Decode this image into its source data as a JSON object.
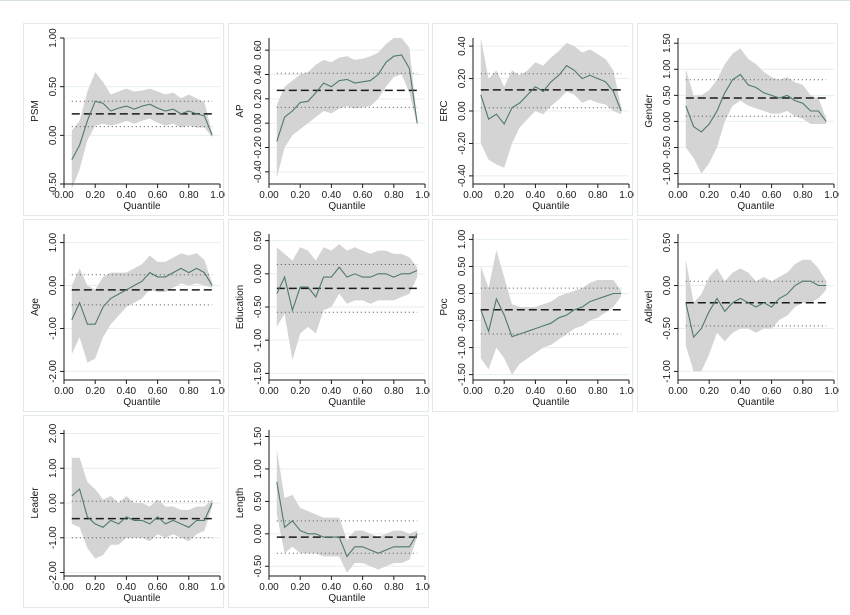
{
  "colors": {
    "band": "#d4d4d4",
    "line": "#4f7a6b",
    "ols": "#1a1a1a",
    "dots": "#555555",
    "axis": "#1a1a1a",
    "grid": "#e6eef1",
    "panel_border": "#e3e8ea"
  },
  "chart_data": [
    {
      "type": "line",
      "ylabel": "PSM",
      "xlabel": "Quantile",
      "xlim": [
        0,
        1
      ],
      "ylim": [
        -0.5,
        1.0
      ],
      "xticks": [
        "0.00",
        "0.20",
        "0.40",
        "0.60",
        "0.80",
        "1.00"
      ],
      "yticks": [
        [
          "-0.50",
          -0.5
        ],
        [
          "0.00",
          0
        ],
        [
          "0.50",
          0.5
        ],
        [
          "1.00",
          1.0
        ]
      ],
      "x": [
        0.05,
        0.1,
        0.15,
        0.2,
        0.25,
        0.3,
        0.35,
        0.4,
        0.45,
        0.5,
        0.55,
        0.6,
        0.65,
        0.7,
        0.75,
        0.8,
        0.85,
        0.9,
        0.95
      ],
      "series": [
        {
          "values": [
            -0.25,
            -0.1,
            0.15,
            0.35,
            0.33,
            0.25,
            0.28,
            0.3,
            0.27,
            0.3,
            0.32,
            0.28,
            0.25,
            0.27,
            0.22,
            0.25,
            0.22,
            0.2,
            0.0
          ]
        }
      ],
      "ci_lower": [
        -0.55,
        -0.35,
        -0.05,
        0.1,
        0.12,
        0.1,
        0.12,
        0.15,
        0.12,
        0.15,
        0.17,
        0.13,
        0.1,
        0.12,
        0.08,
        0.1,
        0.08,
        0.08,
        -0.02
      ],
      "ci_upper": [
        0.05,
        0.15,
        0.45,
        0.65,
        0.55,
        0.42,
        0.45,
        0.48,
        0.45,
        0.46,
        0.48,
        0.45,
        0.42,
        0.44,
        0.38,
        0.42,
        0.38,
        0.34,
        0.02
      ],
      "ols": 0.22,
      "ols_ci": [
        0.09,
        0.35
      ]
    },
    {
      "type": "line",
      "ylabel": "AP",
      "xlabel": "Quantile",
      "xlim": [
        0,
        1
      ],
      "ylim": [
        -0.5,
        0.7
      ],
      "xticks": [
        "0.00",
        "0.20",
        "0.40",
        "0.60",
        "0.80",
        "1.00"
      ],
      "yticks": [
        [
          "-0.40",
          -0.4
        ],
        [
          "-0.20",
          -0.2
        ],
        [
          "0.00",
          0
        ],
        [
          "0.20",
          0.2
        ],
        [
          "0.40",
          0.4
        ],
        [
          "0.60",
          0.6
        ]
      ],
      "x": [
        0.05,
        0.1,
        0.15,
        0.2,
        0.25,
        0.3,
        0.35,
        0.4,
        0.45,
        0.5,
        0.55,
        0.6,
        0.65,
        0.7,
        0.75,
        0.8,
        0.85,
        0.9,
        0.95
      ],
      "series": [
        {
          "values": [
            -0.15,
            0.05,
            0.1,
            0.17,
            0.18,
            0.25,
            0.33,
            0.3,
            0.35,
            0.36,
            0.33,
            0.34,
            0.35,
            0.4,
            0.5,
            0.55,
            0.56,
            0.45,
            0.0
          ]
        }
      ],
      "ci_lower": [
        -0.45,
        -0.2,
        -0.1,
        -0.05,
        0.0,
        0.05,
        0.1,
        0.08,
        0.12,
        0.14,
        0.12,
        0.13,
        0.14,
        0.2,
        0.3,
        0.38,
        0.4,
        0.25,
        -0.02
      ],
      "ci_upper": [
        0.15,
        0.3,
        0.35,
        0.4,
        0.42,
        0.48,
        0.52,
        0.5,
        0.54,
        0.55,
        0.52,
        0.53,
        0.55,
        0.58,
        0.65,
        0.7,
        0.7,
        0.62,
        0.02
      ],
      "ols": 0.27,
      "ols_ci": [
        0.13,
        0.41
      ]
    },
    {
      "type": "line",
      "ylabel": "ERC",
      "xlabel": "Quantile",
      "xlim": [
        0,
        1
      ],
      "ylim": [
        -0.45,
        0.45
      ],
      "xticks": [
        "0.00",
        "0.20",
        "0.40",
        "0.60",
        "0.80",
        "1.00"
      ],
      "yticks": [
        [
          "-0.40",
          -0.4
        ],
        [
          "-0.20",
          -0.2
        ],
        [
          "0.00",
          0
        ],
        [
          "0.20",
          0.2
        ],
        [
          "0.40",
          0.4
        ]
      ],
      "x": [
        0.05,
        0.1,
        0.15,
        0.2,
        0.25,
        0.3,
        0.35,
        0.4,
        0.45,
        0.5,
        0.55,
        0.6,
        0.65,
        0.7,
        0.75,
        0.8,
        0.85,
        0.9,
        0.95
      ],
      "series": [
        {
          "values": [
            0.1,
            -0.05,
            -0.02,
            -0.08,
            0.02,
            0.05,
            0.1,
            0.15,
            0.12,
            0.18,
            0.22,
            0.28,
            0.25,
            0.2,
            0.22,
            0.2,
            0.18,
            0.12,
            0.0
          ]
        }
      ],
      "ci_lower": [
        -0.2,
        -0.3,
        -0.33,
        -0.35,
        -0.2,
        -0.1,
        -0.05,
        0.0,
        -0.02,
        0.03,
        0.07,
        0.12,
        0.1,
        0.05,
        0.07,
        0.05,
        0.04,
        0.0,
        -0.02
      ],
      "ci_upper": [
        0.45,
        0.2,
        0.25,
        0.15,
        0.25,
        0.22,
        0.25,
        0.3,
        0.28,
        0.33,
        0.37,
        0.42,
        0.4,
        0.36,
        0.38,
        0.35,
        0.32,
        0.25,
        0.02
      ],
      "ols": 0.13,
      "ols_ci": [
        0.02,
        0.23
      ]
    },
    {
      "type": "line",
      "ylabel": "Gender",
      "xlabel": "Quantile",
      "xlim": [
        0,
        1
      ],
      "ylim": [
        -1.2,
        1.6
      ],
      "xticks": [
        "0.00",
        "0.20",
        "0.40",
        "0.60",
        "0.80",
        "1.00"
      ],
      "yticks": [
        [
          "-1.00",
          -1.0
        ],
        [
          "-0.50",
          -0.5
        ],
        [
          "0.00",
          0
        ],
        [
          "0.50",
          0.5
        ],
        [
          "1.00",
          1.0
        ],
        [
          "1.50",
          1.5
        ]
      ],
      "x": [
        0.05,
        0.1,
        0.15,
        0.2,
        0.25,
        0.3,
        0.35,
        0.4,
        0.45,
        0.5,
        0.55,
        0.6,
        0.65,
        0.7,
        0.75,
        0.8,
        0.85,
        0.9,
        0.95
      ],
      "series": [
        {
          "values": [
            0.3,
            -0.1,
            -0.2,
            -0.05,
            0.2,
            0.55,
            0.8,
            0.9,
            0.7,
            0.65,
            0.55,
            0.5,
            0.45,
            0.5,
            0.4,
            0.35,
            0.2,
            0.2,
            0.0
          ]
        }
      ],
      "ci_lower": [
        -0.5,
        -0.7,
        -1.0,
        -0.8,
        -0.5,
        0.0,
        0.3,
        0.4,
        0.3,
        0.25,
        0.2,
        0.15,
        0.15,
        0.2,
        0.1,
        0.05,
        -0.05,
        -0.05,
        -0.05
      ],
      "ci_upper": [
        1.0,
        0.5,
        0.5,
        0.6,
        0.8,
        1.1,
        1.3,
        1.4,
        1.2,
        1.1,
        0.95,
        0.85,
        0.8,
        0.85,
        0.75,
        0.7,
        0.5,
        0.45,
        0.05
      ],
      "ols": 0.45,
      "ols_ci": [
        0.1,
        0.8
      ]
    },
    {
      "type": "line",
      "ylabel": "Age",
      "xlabel": "Quantile",
      "xlim": [
        0,
        1
      ],
      "ylim": [
        -2.2,
        1.2
      ],
      "xticks": [
        "0.00",
        "0.20",
        "0.40",
        "0.60",
        "0.80",
        "1.00"
      ],
      "yticks": [
        [
          "-2.00",
          -2.0
        ],
        [
          "-1.00",
          -1.0
        ],
        [
          "0.00",
          0
        ],
        [
          "1.00",
          1.0
        ]
      ],
      "x": [
        0.05,
        0.1,
        0.15,
        0.2,
        0.25,
        0.3,
        0.35,
        0.4,
        0.45,
        0.5,
        0.55,
        0.6,
        0.65,
        0.7,
        0.75,
        0.8,
        0.85,
        0.9,
        0.95
      ],
      "series": [
        {
          "values": [
            -0.8,
            -0.4,
            -0.9,
            -0.9,
            -0.5,
            -0.3,
            -0.2,
            -0.1,
            0.0,
            0.1,
            0.3,
            0.2,
            0.2,
            0.3,
            0.4,
            0.3,
            0.4,
            0.3,
            0.0
          ]
        }
      ],
      "ci_lower": [
        -1.6,
        -1.2,
        -1.8,
        -1.7,
        -1.2,
        -0.9,
        -0.7,
        -0.5,
        -0.4,
        -0.3,
        -0.1,
        -0.15,
        -0.15,
        -0.05,
        0.05,
        0.0,
        0.05,
        0.0,
        -0.05
      ],
      "ci_upper": [
        0.0,
        0.4,
        0.0,
        -0.1,
        0.2,
        0.3,
        0.3,
        0.3,
        0.4,
        0.5,
        0.7,
        0.55,
        0.55,
        0.65,
        0.75,
        0.7,
        0.75,
        0.6,
        0.05
      ],
      "ols": -0.1,
      "ols_ci": [
        -0.45,
        0.25
      ]
    },
    {
      "type": "line",
      "ylabel": "Education",
      "xlabel": "Quantile",
      "xlim": [
        0,
        1
      ],
      "ylim": [
        -1.6,
        0.6
      ],
      "xticks": [
        "0.00",
        "0.20",
        "0.40",
        "0.60",
        "0.80",
        "1.00"
      ],
      "yticks": [
        [
          "-1.50",
          -1.5
        ],
        [
          "-1.00",
          -1.0
        ],
        [
          "-0.50",
          -0.5
        ],
        [
          "0.00",
          0
        ],
        [
          "0.50",
          0.5
        ]
      ],
      "x": [
        0.05,
        0.1,
        0.15,
        0.2,
        0.25,
        0.3,
        0.35,
        0.4,
        0.45,
        0.5,
        0.55,
        0.6,
        0.65,
        0.7,
        0.75,
        0.8,
        0.85,
        0.9,
        0.95
      ],
      "series": [
        {
          "values": [
            -0.3,
            -0.05,
            -0.55,
            -0.2,
            -0.2,
            -0.35,
            -0.05,
            -0.05,
            0.1,
            -0.05,
            0.0,
            -0.05,
            -0.05,
            0.0,
            0.0,
            -0.05,
            0.0,
            0.0,
            0.05
          ]
        }
      ],
      "ci_lower": [
        -0.8,
        -0.6,
        -1.3,
        -0.9,
        -0.8,
        -0.9,
        -0.55,
        -0.5,
        -0.3,
        -0.45,
        -0.4,
        -0.4,
        -0.45,
        -0.4,
        -0.4,
        -0.4,
        -0.35,
        -0.3,
        -0.05
      ],
      "ci_upper": [
        0.4,
        0.3,
        0.2,
        0.4,
        0.35,
        0.2,
        0.4,
        0.35,
        0.45,
        0.35,
        0.4,
        0.35,
        0.3,
        0.35,
        0.35,
        0.3,
        0.3,
        0.25,
        0.1
      ],
      "ols": -0.22,
      "ols_ci": [
        -0.58,
        0.14
      ]
    },
    {
      "type": "line",
      "ylabel": "Poc",
      "xlabel": "Quantile",
      "xlim": [
        0,
        1
      ],
      "ylim": [
        -1.6,
        1.1
      ],
      "xticks": [
        "0.00",
        "0.20",
        "0.40",
        "0.60",
        "0.80",
        "1.00"
      ],
      "yticks": [
        [
          "-1.50",
          -1.5
        ],
        [
          "-1.00",
          -1.0
        ],
        [
          "-0.50",
          -0.5
        ],
        [
          "0.00",
          0
        ],
        [
          "0.50",
          0.5
        ],
        [
          "1.00",
          1.0
        ]
      ],
      "x": [
        0.05,
        0.1,
        0.15,
        0.2,
        0.25,
        0.3,
        0.35,
        0.4,
        0.45,
        0.5,
        0.55,
        0.6,
        0.65,
        0.7,
        0.75,
        0.8,
        0.85,
        0.9,
        0.95
      ],
      "series": [
        {
          "values": [
            -0.3,
            -0.7,
            -0.1,
            -0.4,
            -0.8,
            -0.75,
            -0.7,
            -0.65,
            -0.6,
            -0.55,
            -0.45,
            -0.4,
            -0.3,
            -0.25,
            -0.15,
            -0.1,
            -0.05,
            0.0,
            0.0
          ]
        }
      ],
      "ci_lower": [
        -1.2,
        -1.4,
        -1.0,
        -1.2,
        -1.5,
        -1.3,
        -1.2,
        -1.1,
        -1.0,
        -0.95,
        -0.85,
        -0.75,
        -0.65,
        -0.6,
        -0.5,
        -0.45,
        -0.35,
        -0.25,
        -0.05
      ],
      "ci_upper": [
        0.5,
        0.1,
        0.8,
        0.3,
        -0.2,
        -0.25,
        -0.25,
        -0.25,
        -0.2,
        -0.15,
        -0.05,
        0.0,
        0.05,
        0.1,
        0.2,
        0.25,
        0.25,
        0.25,
        0.05
      ],
      "ols": -0.3,
      "ols_ci": [
        -0.75,
        0.1
      ]
    },
    {
      "type": "line",
      "ylabel": "Adlevel",
      "xlabel": "Quantile",
      "xlim": [
        0,
        1
      ],
      "ylim": [
        -1.1,
        0.6
      ],
      "xticks": [
        "0.00",
        "0.20",
        "0.40",
        "0.60",
        "0.80",
        "1.00"
      ],
      "yticks": [
        [
          "-1.00",
          -1.0
        ],
        [
          "-0.50",
          -0.5
        ],
        [
          "0.00",
          0
        ],
        [
          "0.50",
          0.5
        ]
      ],
      "x": [
        0.05,
        0.1,
        0.15,
        0.2,
        0.25,
        0.3,
        0.35,
        0.4,
        0.45,
        0.5,
        0.55,
        0.6,
        0.65,
        0.7,
        0.75,
        0.8,
        0.85,
        0.9,
        0.95
      ],
      "series": [
        {
          "values": [
            -0.2,
            -0.6,
            -0.5,
            -0.3,
            -0.15,
            -0.3,
            -0.2,
            -0.15,
            -0.2,
            -0.25,
            -0.2,
            -0.25,
            -0.15,
            -0.1,
            0.0,
            0.05,
            0.05,
            0.0,
            0.0
          ]
        }
      ],
      "ci_lower": [
        -0.7,
        -1.0,
        -1.0,
        -0.8,
        -0.55,
        -0.65,
        -0.55,
        -0.5,
        -0.5,
        -0.55,
        -0.5,
        -0.5,
        -0.4,
        -0.35,
        -0.25,
        -0.2,
        -0.2,
        -0.15,
        -0.05
      ],
      "ci_upper": [
        0.3,
        -0.2,
        -0.1,
        0.1,
        0.2,
        0.05,
        0.15,
        0.2,
        0.15,
        0.05,
        0.1,
        0.05,
        0.1,
        0.15,
        0.25,
        0.3,
        0.3,
        0.2,
        0.05
      ],
      "ols": -0.2,
      "ols_ci": [
        -0.47,
        0.05
      ]
    },
    {
      "type": "line",
      "ylabel": "Leader",
      "xlabel": "Quantile",
      "xlim": [
        0,
        1
      ],
      "ylim": [
        -2.1,
        2.1
      ],
      "xticks": [
        "0.00",
        "0.20",
        "0.40",
        "0.60",
        "0.80",
        "1.00"
      ],
      "yticks": [
        [
          "-2.00",
          -2.0
        ],
        [
          "-1.00",
          -1.0
        ],
        [
          "0.00",
          0
        ],
        [
          "1.00",
          1.0
        ],
        [
          "2.00",
          2.0
        ]
      ],
      "x": [
        0.05,
        0.1,
        0.15,
        0.2,
        0.25,
        0.3,
        0.35,
        0.4,
        0.45,
        0.5,
        0.55,
        0.6,
        0.65,
        0.7,
        0.75,
        0.8,
        0.85,
        0.9,
        0.95
      ],
      "series": [
        {
          "values": [
            0.2,
            0.4,
            -0.4,
            -0.6,
            -0.7,
            -0.5,
            -0.6,
            -0.4,
            -0.5,
            -0.5,
            -0.6,
            -0.4,
            -0.6,
            -0.5,
            -0.6,
            -0.7,
            -0.5,
            -0.5,
            0.0
          ]
        }
      ],
      "ci_lower": [
        -0.6,
        -0.7,
        -1.3,
        -1.6,
        -1.5,
        -1.2,
        -1.2,
        -1.0,
        -1.0,
        -1.0,
        -1.1,
        -0.9,
        -1.0,
        -0.9,
        -1.0,
        -1.1,
        -0.9,
        -0.8,
        -0.1
      ],
      "ci_upper": [
        1.3,
        1.3,
        0.6,
        0.4,
        0.1,
        0.2,
        0.0,
        0.2,
        0.0,
        0.0,
        -0.1,
        0.1,
        -0.1,
        -0.1,
        -0.2,
        -0.2,
        -0.1,
        -0.1,
        0.1
      ],
      "ols": -0.45,
      "ols_ci": [
        -1.0,
        0.05
      ]
    },
    {
      "type": "line",
      "ylabel": "Length",
      "xlabel": "Quantile",
      "xlim": [
        0,
        1
      ],
      "ylim": [
        -0.65,
        1.6
      ],
      "xticks": [
        "0.00",
        "0.20",
        "0.40",
        "0.60",
        "0.80",
        "1.00"
      ],
      "yticks": [
        [
          "-0.50",
          -0.5
        ],
        [
          "0.00",
          0
        ],
        [
          "0.50",
          0.5
        ],
        [
          "1.00",
          1.0
        ],
        [
          "1.50",
          1.5
        ]
      ],
      "x": [
        0.05,
        0.1,
        0.15,
        0.2,
        0.25,
        0.3,
        0.35,
        0.4,
        0.45,
        0.5,
        0.55,
        0.6,
        0.65,
        0.7,
        0.75,
        0.8,
        0.85,
        0.9,
        0.95
      ],
      "series": [
        {
          "values": [
            0.8,
            0.1,
            0.2,
            0.05,
            0.0,
            0.0,
            -0.05,
            -0.05,
            -0.05,
            -0.35,
            -0.2,
            -0.2,
            -0.25,
            -0.3,
            -0.25,
            -0.2,
            -0.2,
            -0.2,
            0.0
          ]
        }
      ],
      "ci_lower": [
        0.3,
        -0.3,
        -0.2,
        -0.3,
        -0.3,
        -0.3,
        -0.35,
        -0.35,
        -0.35,
        -0.6,
        -0.45,
        -0.45,
        -0.5,
        -0.55,
        -0.5,
        -0.45,
        -0.45,
        -0.4,
        -0.05
      ],
      "ci_upper": [
        1.3,
        0.55,
        0.6,
        0.4,
        0.35,
        0.3,
        0.25,
        0.25,
        0.25,
        -0.1,
        0.05,
        0.05,
        0.0,
        -0.05,
        0.0,
        0.05,
        0.05,
        0.0,
        0.05
      ],
      "ols": -0.05,
      "ols_ci": [
        -0.3,
        0.2
      ]
    }
  ]
}
